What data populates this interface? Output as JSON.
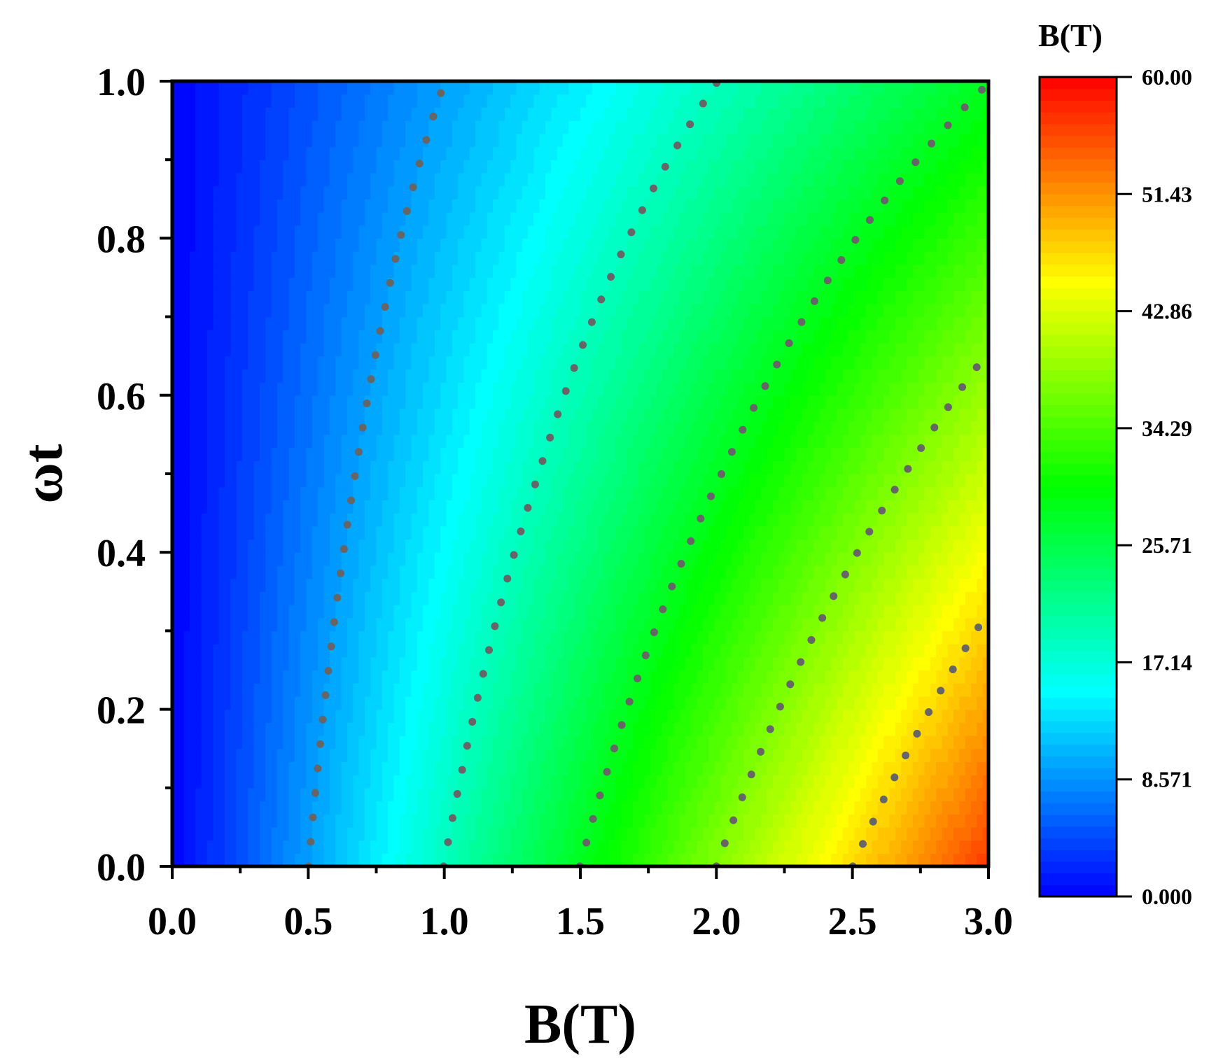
{
  "chart_data": {
    "type": "heatmap",
    "subtype": "filled-contour",
    "title": "",
    "xlabel": "B(T)",
    "ylabel": "ωt",
    "xlim": [
      0,
      3
    ],
    "ylim": [
      0,
      1
    ],
    "x_ticks": [
      "0.0",
      "0.5",
      "1.0",
      "1.5",
      "2.0",
      "2.5",
      "3.0"
    ],
    "y_ticks": [
      "0.0",
      "0.2",
      "0.4",
      "0.6",
      "0.8",
      "1.0"
    ],
    "colorbar": {
      "title": "B(T)",
      "range": [
        0,
        60
      ],
      "ticks": [
        "0.000",
        "8.571",
        "17.14",
        "25.71",
        "34.29",
        "42.86",
        "51.43",
        "60.00"
      ],
      "colormap": [
        "#0000ff",
        "#0080ff",
        "#00ffff",
        "#00ff80",
        "#00ff00",
        "#80ff00",
        "#ffff00",
        "#ff8000",
        "#ff0000"
      ]
    },
    "field_samples": {
      "x": [
        0,
        0.5,
        1.0,
        1.5,
        2.0,
        2.5,
        3.0
      ],
      "y": [
        0,
        0.5,
        1.0
      ],
      "z": [
        [
          0,
          9.4,
          18.9,
          28.3,
          37.7,
          47.1,
          56.6
        ],
        [
          0,
          7.0,
          14.0,
          21.0,
          28.0,
          35.0,
          42.0
        ],
        [
          0,
          4.7,
          9.4,
          14.1,
          18.8,
          23.5,
          28.2
        ]
      ]
    },
    "contour_lines": {
      "style": "dotted",
      "color": "#666666",
      "levels": [
        9.42,
        18.85,
        28.27,
        37.7,
        47.12,
        56.55
      ]
    }
  }
}
